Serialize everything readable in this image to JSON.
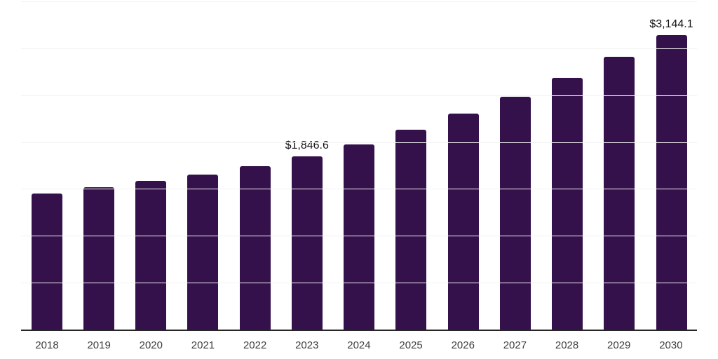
{
  "chart_data": {
    "type": "bar",
    "title": "",
    "xlabel": "",
    "ylabel": "",
    "categories": [
      "2018",
      "2019",
      "2020",
      "2021",
      "2022",
      "2023",
      "2024",
      "2025",
      "2026",
      "2027",
      "2028",
      "2029",
      "2030"
    ],
    "values": [
      1450,
      1515,
      1582,
      1650,
      1740,
      1846.6,
      1978,
      2134,
      2300,
      2484,
      2688,
      2910,
      3144.1
    ],
    "annotations": [
      {
        "index": 5,
        "category": "2023",
        "text": "$1,846.6"
      },
      {
        "index": 12,
        "category": "2030",
        "text": "$3,144.1"
      }
    ],
    "ylim": [
      0,
      3500
    ],
    "gridline_step": 500,
    "grid": "horizontal-only",
    "y_tick_labels_visible": false,
    "legend": "none",
    "colors": {
      "bar": "#35114B",
      "gridline": "#f2f2f2",
      "axis_line": "#262626",
      "tick_label": "#3d3d3d",
      "data_label": "#111111",
      "background": "#ffffff"
    }
  }
}
